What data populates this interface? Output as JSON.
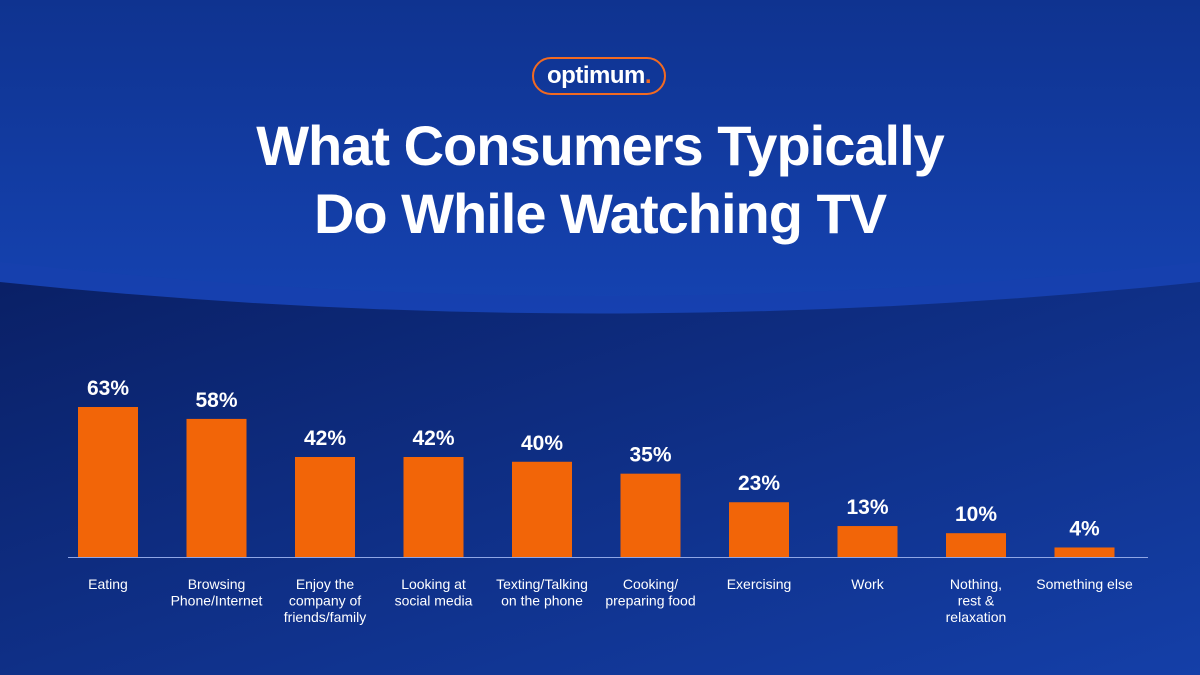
{
  "brand": {
    "name": "optimum",
    "dot": ".",
    "accent_color": "#f26a21"
  },
  "title_lines": [
    "What Consumers Typically",
    "Do While Watching TV"
  ],
  "colors": {
    "background_top": "#123a9c",
    "background_bottom": "#0b2470",
    "bar": "#f26508",
    "text": "#ffffff"
  },
  "chart_data": {
    "type": "bar",
    "title": "What Consumers Typically Do While Watching TV",
    "categories": [
      [
        "Eating"
      ],
      [
        "Browsing",
        "Phone/Internet"
      ],
      [
        "Enjoy the",
        "company of",
        "friends/family"
      ],
      [
        "Looking at",
        "social media"
      ],
      [
        "Texting/Talking",
        "on the phone"
      ],
      [
        "Cooking/",
        "preparing food"
      ],
      [
        "Exercising"
      ],
      [
        "Work"
      ],
      [
        "Nothing,",
        "rest &",
        "relaxation"
      ],
      [
        "Something else"
      ]
    ],
    "values": [
      63,
      58,
      42,
      42,
      40,
      35,
      23,
      13,
      10,
      4
    ],
    "value_labels": [
      "63%",
      "58%",
      "42%",
      "42%",
      "40%",
      "35%",
      "23%",
      "13%",
      "10%",
      "4%"
    ],
    "unit": "%",
    "ylim": [
      0,
      63
    ],
    "grid": false,
    "legend": "none"
  }
}
